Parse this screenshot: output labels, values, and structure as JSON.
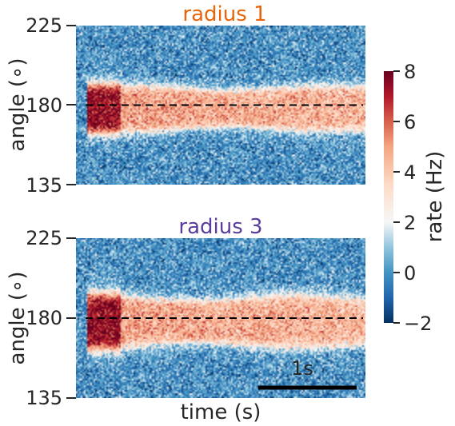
{
  "colors": {
    "title_top": "#e8650a",
    "title_bottom": "#5a3d9a",
    "text": "#262626",
    "reference_line": "#000000",
    "scalebar": "#000000",
    "colormap": "RdBu_r"
  },
  "chart_data": [
    {
      "type": "heatmap",
      "title": "radius 1",
      "xlabel": "",
      "ylabel": "angle (∘)",
      "ylim": [
        135,
        225
      ],
      "yticks": [
        135,
        180,
        225
      ],
      "yticklabels": [
        "135",
        "180",
        "225"
      ],
      "reference_line_y": 180,
      "background_rate": 0,
      "bump": {
        "center_angle": 178,
        "half_width_deg": 14,
        "onset_rate": 7.5,
        "sustained_rate": 5
      }
    },
    {
      "type": "heatmap",
      "title": "radius 3",
      "xlabel": "time (s)",
      "ylabel": "angle (∘)",
      "ylim": [
        135,
        225
      ],
      "yticks": [
        135,
        180,
        225
      ],
      "yticklabels": [
        "135",
        "180",
        "225"
      ],
      "reference_line_y": 180,
      "scalebar_label": "1s",
      "background_rate": 0,
      "bump": {
        "center_angle": 178,
        "half_width_deg": 16,
        "onset_rate": 7.5,
        "sustained_rate": 5
      }
    }
  ],
  "colorbar": {
    "label": "rate (Hz)",
    "vmin": -2,
    "vmax": 8,
    "ticks": [
      -2,
      0,
      2,
      4,
      6,
      8
    ],
    "ticklabels": [
      "−2",
      "0",
      "2",
      "4",
      "6",
      "8"
    ]
  }
}
